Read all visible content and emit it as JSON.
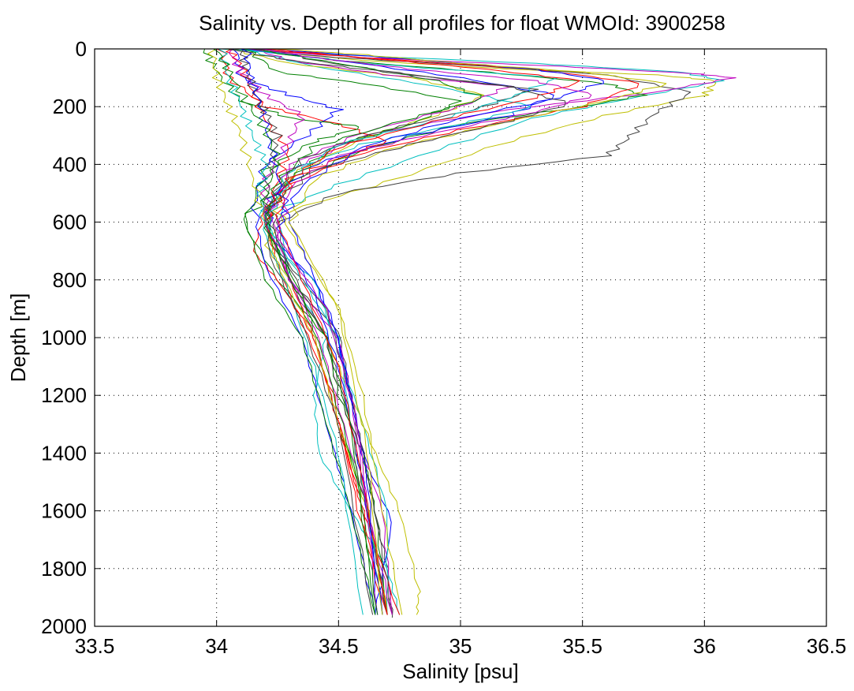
{
  "chart_data": {
    "type": "line",
    "title": "Salinity vs. Depth for all profiles for float WMOId: 3900258",
    "xlabel": "Salinity [psu]",
    "ylabel": "Depth [m]",
    "xlim": [
      33.5,
      36.5
    ],
    "ylim": [
      0,
      2000
    ],
    "y_reversed": true,
    "grid": true,
    "legend": "none",
    "xticks": [
      33.5,
      34,
      34.5,
      35,
      35.5,
      36,
      36.5
    ],
    "xtick_labels": [
      "33.5",
      "34",
      "34.5",
      "35",
      "35.5",
      "36",
      "36.5"
    ],
    "yticks": [
      0,
      200,
      400,
      600,
      800,
      1000,
      1200,
      1400,
      1600,
      1800,
      2000
    ],
    "ytick_labels": [
      "0",
      "200",
      "400",
      "600",
      "800",
      "1000",
      "1200",
      "1400",
      "1600",
      "1800",
      "2000"
    ],
    "palette": [
      "#0000ff",
      "#008000",
      "#ff0000",
      "#00bfbf",
      "#bf00bf",
      "#bfbf00",
      "#404040"
    ],
    "series": [
      {
        "color": "#bfbf00",
        "x": [
          34.1,
          34.6,
          35.2,
          35.8,
          36.05,
          36.0,
          35.6,
          35.2,
          34.7,
          34.3,
          34.2,
          34.3,
          34.45,
          34.55,
          34.65,
          34.75,
          34.83,
          34.82
        ],
        "y": [
          0,
          40,
          70,
          90,
          110,
          160,
          230,
          320,
          460,
          560,
          680,
          800,
          1000,
          1200,
          1400,
          1600,
          1880,
          1960
        ]
      },
      {
        "color": "#404040",
        "x": [
          34.05,
          34.5,
          35.1,
          35.6,
          35.95,
          35.8,
          35.7,
          35.6,
          35.0,
          34.5,
          34.25,
          34.3,
          34.5,
          34.55,
          34.6,
          34.65,
          34.7,
          34.72
        ],
        "y": [
          0,
          30,
          60,
          90,
          150,
          220,
          300,
          370,
          430,
          500,
          600,
          800,
          980,
          1200,
          1400,
          1600,
          1800,
          1970
        ]
      },
      {
        "color": "#00bfbf",
        "x": [
          34.0,
          34.5,
          35.3,
          35.9,
          36.08,
          35.7,
          35.3,
          34.9,
          34.5,
          34.25,
          34.3,
          34.45,
          34.4,
          34.42,
          34.55,
          34.7,
          34.75
        ],
        "y": [
          0,
          20,
          50,
          80,
          110,
          170,
          240,
          350,
          470,
          560,
          800,
          990,
          1200,
          1400,
          1600,
          1800,
          1960
        ]
      },
      {
        "color": "#bf00bf",
        "x": [
          34.08,
          34.6,
          35.4,
          35.95,
          36.12,
          35.8,
          35.2,
          34.6,
          34.3,
          34.2,
          34.3,
          34.45,
          34.5,
          34.6,
          34.68,
          34.72
        ],
        "y": [
          0,
          30,
          60,
          85,
          100,
          150,
          210,
          300,
          420,
          600,
          800,
          1000,
          1200,
          1400,
          1600,
          1960
        ]
      },
      {
        "color": "#008000",
        "x": [
          34.12,
          34.5,
          35.1,
          35.6,
          35.75,
          35.5,
          35.0,
          34.6,
          34.3,
          34.1,
          34.25,
          34.45,
          34.5,
          34.6,
          34.65,
          34.7
        ],
        "y": [
          0,
          40,
          80,
          120,
          160,
          200,
          260,
          350,
          460,
          590,
          800,
          1000,
          1200,
          1400,
          1600,
          1960
        ]
      },
      {
        "color": "#ff0000",
        "x": [
          34.15,
          34.6,
          35.3,
          35.75,
          35.5,
          35.0,
          34.6,
          34.3,
          34.2,
          34.15,
          34.25,
          34.4,
          34.5,
          34.6,
          34.68
        ],
        "y": [
          0,
          30,
          70,
          120,
          200,
          280,
          360,
          470,
          560,
          700,
          800,
          1000,
          1300,
          1600,
          1960
        ]
      },
      {
        "color": "#0000ff",
        "x": [
          34.1,
          34.5,
          35.0,
          35.4,
          35.2,
          34.8,
          34.4,
          34.22,
          34.22,
          34.4,
          34.5,
          34.6,
          34.72,
          34.65
        ],
        "y": [
          0,
          40,
          100,
          160,
          230,
          300,
          400,
          520,
          650,
          800,
          1000,
          1400,
          1640,
          1960
        ]
      },
      {
        "color": "#00bfbf",
        "x": [
          34.1,
          34.4,
          34.9,
          35.3,
          35.0,
          34.6,
          34.3,
          34.2,
          34.25,
          34.4,
          34.48,
          34.6,
          34.7,
          34.7
        ],
        "y": [
          0,
          60,
          130,
          200,
          260,
          330,
          420,
          560,
          700,
          800,
          1000,
          1300,
          1600,
          1960
        ]
      },
      {
        "color": "#bfbf00",
        "x": [
          34.05,
          34.3,
          34.8,
          35.1,
          34.9,
          34.6,
          34.3,
          34.25,
          34.35,
          34.5,
          34.6,
          34.68,
          34.76
        ],
        "y": [
          0,
          50,
          100,
          160,
          230,
          310,
          440,
          560,
          700,
          900,
          1200,
          1600,
          1960
        ]
      },
      {
        "color": "#008000",
        "x": [
          34.12,
          34.25,
          34.6,
          35.0,
          34.8,
          34.5,
          34.3,
          34.2,
          34.28,
          34.4,
          34.5,
          34.62,
          34.7
        ],
        "y": [
          0,
          80,
          120,
          180,
          260,
          330,
          450,
          600,
          750,
          1000,
          1300,
          1600,
          1960
        ]
      },
      {
        "color": "#ff0000",
        "x": [
          34.02,
          34.05,
          34.2,
          34.5,
          34.7,
          34.5,
          34.3,
          34.2,
          34.3,
          34.4,
          34.5,
          34.6,
          34.75
        ],
        "y": [
          0,
          100,
          200,
          260,
          320,
          380,
          450,
          600,
          800,
          1000,
          1300,
          1600,
          1960
        ]
      },
      {
        "color": "#bf00bf",
        "x": [
          34.15,
          34.3,
          34.7,
          35.2,
          35.0,
          34.6,
          34.3,
          34.22,
          34.3,
          34.5,
          34.55,
          34.62,
          34.7
        ],
        "y": [
          0,
          40,
          90,
          130,
          200,
          290,
          400,
          560,
          800,
          1000,
          1200,
          1600,
          1960
        ]
      },
      {
        "color": "#0000ff",
        "x": [
          34.08,
          34.1,
          34.3,
          34.5,
          34.4,
          34.2,
          34.15,
          34.2,
          34.35,
          34.45,
          34.55,
          34.65
        ],
        "y": [
          0,
          100,
          160,
          210,
          280,
          400,
          550,
          750,
          1000,
          1300,
          1600,
          1960
        ]
      },
      {
        "color": "#404040",
        "x": [
          34.2,
          34.4,
          34.8,
          35.3,
          35.1,
          34.7,
          34.35,
          34.22,
          34.25,
          34.45,
          34.55,
          34.65,
          34.72
        ],
        "y": [
          0,
          40,
          90,
          140,
          200,
          280,
          380,
          520,
          700,
          900,
          1200,
          1600,
          1960
        ]
      },
      {
        "color": "#008000",
        "x": [
          33.95,
          34.0,
          34.1,
          34.3,
          34.6,
          34.4,
          34.2,
          34.12,
          34.2,
          34.35,
          34.45,
          34.55,
          34.65
        ],
        "y": [
          0,
          80,
          180,
          240,
          270,
          320,
          420,
          600,
          800,
          1000,
          1300,
          1600,
          1960
        ]
      },
      {
        "color": "#00bfbf",
        "x": [
          34.1,
          34.6,
          35.4,
          35.2,
          34.9,
          34.5,
          34.3,
          34.2,
          34.35,
          34.5,
          34.55,
          34.62,
          34.68
        ],
        "y": [
          0,
          50,
          100,
          170,
          250,
          330,
          450,
          600,
          800,
          1000,
          1300,
          1600,
          1960
        ]
      },
      {
        "color": "#ff0000",
        "x": [
          34.05,
          34.1,
          34.15,
          34.2,
          34.3,
          34.25,
          34.2,
          34.25,
          34.35,
          34.48,
          34.58,
          34.7
        ],
        "y": [
          0,
          60,
          150,
          250,
          350,
          450,
          600,
          750,
          950,
          1200,
          1600,
          1960
        ]
      },
      {
        "color": "#bfbf00",
        "x": [
          33.98,
          34.0,
          34.05,
          34.1,
          34.15,
          34.2,
          34.25,
          34.4,
          34.5,
          34.62,
          34.7
        ],
        "y": [
          0,
          100,
          200,
          300,
          450,
          600,
          750,
          1000,
          1300,
          1600,
          1960
        ]
      },
      {
        "color": "#0000ff",
        "x": [
          34.2,
          34.7,
          35.3,
          35.6,
          35.4,
          35.0,
          34.6,
          34.35,
          34.25,
          34.4,
          34.5,
          34.6,
          34.68
        ],
        "y": [
          0,
          30,
          70,
          110,
          170,
          240,
          340,
          470,
          620,
          850,
          1100,
          1500,
          1960
        ]
      },
      {
        "color": "#bf00bf",
        "x": [
          34.05,
          34.1,
          34.2,
          34.35,
          34.3,
          34.2,
          34.2,
          34.3,
          34.42,
          34.52,
          34.62,
          34.72
        ],
        "y": [
          0,
          80,
          160,
          230,
          320,
          450,
          600,
          800,
          1000,
          1300,
          1600,
          1960
        ]
      },
      {
        "color": "#404040",
        "x": [
          34.1,
          34.12,
          34.15,
          34.2,
          34.25,
          34.22,
          34.2,
          34.3,
          34.45,
          34.55,
          34.62,
          34.7
        ],
        "y": [
          0,
          60,
          140,
          220,
          300,
          400,
          560,
          760,
          1000,
          1300,
          1600,
          1960
        ]
      },
      {
        "color": "#008000",
        "x": [
          34.15,
          34.5,
          34.9,
          35.1,
          34.8,
          34.4,
          34.25,
          34.2,
          34.3,
          34.45,
          34.55,
          34.65
        ],
        "y": [
          0,
          50,
          110,
          170,
          240,
          340,
          460,
          620,
          800,
          1000,
          1300,
          1960
        ]
      },
      {
        "color": "#ff0000",
        "x": [
          34.2,
          34.6,
          35.1,
          35.5,
          35.3,
          34.9,
          34.5,
          34.3,
          34.25,
          34.35,
          34.5,
          34.6,
          34.7
        ],
        "y": [
          0,
          30,
          70,
          110,
          170,
          250,
          340,
          450,
          600,
          800,
          1100,
          1500,
          1960
        ]
      },
      {
        "color": "#00bfbf",
        "x": [
          34.02,
          34.05,
          34.1,
          34.15,
          34.2,
          34.18,
          34.2,
          34.3,
          34.4,
          34.5,
          34.6
        ],
        "y": [
          0,
          100,
          200,
          300,
          400,
          500,
          650,
          850,
          1100,
          1400,
          1960
        ]
      },
      {
        "color": "#0000ff",
        "x": [
          34.12,
          34.14,
          34.18,
          34.22,
          34.25,
          34.3,
          34.38,
          34.48,
          34.55,
          34.62,
          34.66
        ],
        "y": [
          0,
          100,
          200,
          320,
          450,
          600,
          750,
          950,
          1200,
          1500,
          1960
        ]
      },
      {
        "color": "#bfbf00",
        "x": [
          34.25,
          34.6,
          35.0,
          35.5,
          35.85,
          35.6,
          35.2,
          34.7,
          34.4,
          34.3,
          34.5,
          34.62,
          34.68
        ],
        "y": [
          0,
          20,
          50,
          80,
          120,
          180,
          250,
          350,
          450,
          600,
          900,
          1400,
          1960
        ]
      },
      {
        "color": "#bf00bf",
        "x": [
          34.18,
          34.4,
          34.8,
          35.3,
          35.55,
          35.3,
          34.9,
          34.5,
          34.3,
          34.25,
          34.45,
          34.58,
          34.66
        ],
        "y": [
          0,
          30,
          70,
          110,
          160,
          220,
          290,
          370,
          480,
          650,
          900,
          1300,
          1960
        ]
      },
      {
        "color": "#008000",
        "x": [
          34.0,
          34.05,
          34.12,
          34.2,
          34.25,
          34.2,
          34.22,
          34.35,
          34.45,
          34.58,
          34.66
        ],
        "y": [
          0,
          80,
          180,
          280,
          380,
          500,
          650,
          850,
          1100,
          1500,
          1960
        ]
      },
      {
        "color": "#404040",
        "x": [
          34.05,
          34.3,
          34.7,
          35.2,
          35.45,
          35.2,
          34.8,
          34.4,
          34.2,
          34.22,
          34.35,
          34.5,
          34.64
        ],
        "y": [
          0,
          40,
          80,
          130,
          190,
          250,
          330,
          420,
          560,
          720,
          950,
          1300,
          1960
        ]
      }
    ]
  }
}
